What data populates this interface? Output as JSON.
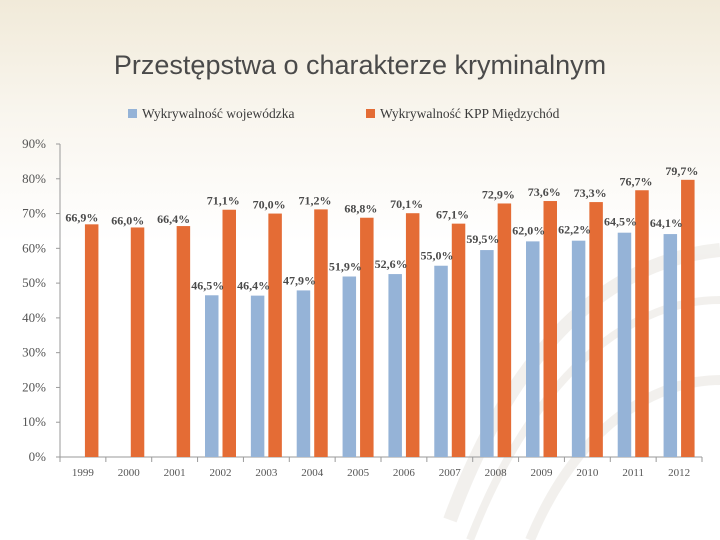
{
  "slide": {
    "title": "Przestępstwa o charakterze kryminalnym"
  },
  "colors": {
    "series1": "#95b3d7",
    "series2": "#e46c35",
    "axis": "#9a9a9a",
    "text": "#4a4a4a"
  },
  "chart_data": {
    "type": "bar",
    "title": "",
    "xlabel": "",
    "ylabel": "",
    "ylim": [
      0,
      90
    ],
    "yticks": [
      0,
      10,
      20,
      30,
      40,
      50,
      60,
      70,
      80,
      90
    ],
    "ytick_labels": [
      "0%",
      "10%",
      "20%",
      "30%",
      "40%",
      "50%",
      "60%",
      "70%",
      "80%",
      "90%"
    ],
    "legend_position": "top",
    "categories": [
      "1999",
      "2000",
      "2001",
      "2002",
      "2003",
      "2004",
      "2005",
      "2006",
      "2007",
      "2008",
      "2009",
      "2010",
      "2011",
      "2012"
    ],
    "series": [
      {
        "name": "Wykrywalność wojewódzka",
        "values": [
          null,
          null,
          null,
          46.5,
          46.4,
          47.9,
          51.9,
          52.6,
          55.0,
          59.5,
          62.0,
          62.2,
          64.5,
          64.1
        ],
        "labels": [
          "",
          "",
          "",
          "46,5%",
          "46,4%",
          "47,9%",
          "51,9%",
          "52,6%",
          "55,0%",
          "59,5%",
          "62,0%",
          "62,2%",
          "64,5%",
          "64,1%"
        ]
      },
      {
        "name": "Wykrywalność KPP Międzychód",
        "values": [
          66.9,
          66.0,
          66.4,
          71.1,
          70.0,
          71.2,
          68.8,
          70.1,
          67.1,
          72.9,
          73.6,
          73.3,
          76.7,
          79.7
        ],
        "labels": [
          "66,9%",
          "66,0%",
          "66,4%",
          "71,1%",
          "70,0%",
          "71,2%",
          "68,8%",
          "70,1%",
          "67,1%",
          "72,9%",
          "73,6%",
          "73,3%",
          "76,7%",
          "79,7%"
        ]
      }
    ]
  }
}
